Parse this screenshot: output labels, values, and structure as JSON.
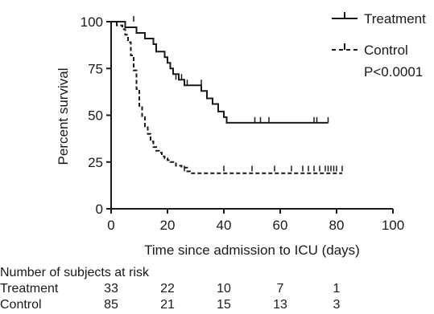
{
  "chart_data": {
    "type": "line",
    "subtype": "kaplan-meier",
    "xlabel": "Time since admission to ICU (days)",
    "ylabel": "Percent survival",
    "xlim": [
      0,
      100
    ],
    "ylim": [
      0,
      100
    ],
    "xticks": [
      0,
      20,
      40,
      60,
      80,
      100
    ],
    "yticks": [
      0,
      25,
      50,
      75,
      100
    ],
    "annotation": "P<0.0001",
    "legend_position": "top-right",
    "series": [
      {
        "name": "Treatment",
        "style": "solid",
        "steps": [
          [
            0,
            100
          ],
          [
            5,
            97
          ],
          [
            9,
            94
          ],
          [
            12,
            91
          ],
          [
            15,
            88
          ],
          [
            16,
            84
          ],
          [
            19,
            81
          ],
          [
            20,
            78
          ],
          [
            21,
            75
          ],
          [
            22,
            72
          ],
          [
            24,
            69
          ],
          [
            26,
            66
          ],
          [
            32,
            63
          ],
          [
            34,
            59
          ],
          [
            36,
            56
          ],
          [
            38,
            52
          ],
          [
            40,
            49
          ],
          [
            41,
            46
          ],
          [
            77,
            46
          ]
        ],
        "censored": [
          [
            8,
            100
          ],
          [
            23,
            69
          ],
          [
            24,
            69
          ],
          [
            25,
            69
          ],
          [
            27,
            66
          ],
          [
            32,
            66
          ],
          [
            51,
            46
          ],
          [
            53,
            46
          ],
          [
            56,
            46
          ],
          [
            72,
            46
          ],
          [
            73,
            46
          ],
          [
            77,
            46
          ]
        ]
      },
      {
        "name": "Control",
        "style": "dashed",
        "steps": [
          [
            0,
            100
          ],
          [
            2,
            98
          ],
          [
            4,
            96
          ],
          [
            5,
            93
          ],
          [
            6,
            89
          ],
          [
            7,
            82
          ],
          [
            8,
            74
          ],
          [
            9,
            64
          ],
          [
            10,
            55
          ],
          [
            11,
            49
          ],
          [
            12,
            44
          ],
          [
            13,
            40
          ],
          [
            14,
            36
          ],
          [
            15,
            33
          ],
          [
            16,
            31
          ],
          [
            17,
            30
          ],
          [
            18,
            28
          ],
          [
            19,
            27
          ],
          [
            20,
            26
          ],
          [
            21,
            25
          ],
          [
            23,
            23
          ],
          [
            25,
            22
          ],
          [
            27,
            20
          ],
          [
            28,
            19
          ],
          [
            82,
            19
          ]
        ],
        "censored": [
          [
            26,
            20
          ],
          [
            40,
            20
          ],
          [
            50,
            20
          ],
          [
            58,
            20
          ],
          [
            64,
            20
          ],
          [
            68,
            20
          ],
          [
            70,
            20
          ],
          [
            72,
            20
          ],
          [
            74,
            20
          ],
          [
            76,
            20
          ],
          [
            77,
            20
          ],
          [
            78,
            20
          ],
          [
            79,
            20
          ],
          [
            80,
            20
          ],
          [
            82,
            20
          ]
        ]
      }
    ],
    "risk_table": {
      "title": "Number of subjects at risk",
      "rows": [
        {
          "label": "Treatment",
          "values": [
            "33",
            "22",
            "10",
            "7",
            "1"
          ]
        },
        {
          "label": "Control",
          "values": [
            "85",
            "21",
            "15",
            "13",
            "3"
          ]
        }
      ],
      "times": [
        0,
        20,
        40,
        60,
        80
      ]
    }
  }
}
